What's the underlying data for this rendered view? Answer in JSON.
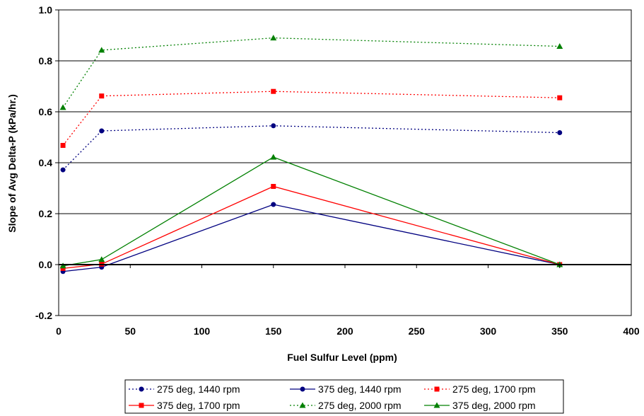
{
  "chart_data": {
    "type": "line",
    "title": "",
    "xlabel": "Fuel Sulfur Level (ppm)",
    "ylabel": "Slope of Avg Delta-P (kPa/hr.)",
    "xlim": [
      0,
      400
    ],
    "ylim": [
      -0.2,
      1.0
    ],
    "xticks": [
      0,
      50,
      100,
      150,
      200,
      250,
      300,
      350,
      400
    ],
    "yticks": [
      -0.2,
      0.0,
      0.2,
      0.4,
      0.6,
      0.8,
      1.0
    ],
    "xtick_labels": [
      "0",
      "50",
      "100",
      "150",
      "200",
      "250",
      "300",
      "350",
      "400"
    ],
    "ytick_labels": [
      "-0.2",
      "0.0",
      "0.2",
      "0.4",
      "0.6",
      "0.8",
      "1.0"
    ],
    "grid": "horizontal",
    "legend_position": "bottom",
    "x": [
      3,
      30,
      150,
      350
    ],
    "series": [
      {
        "name": "275 deg, 1440 rpm",
        "values": [
          0.372,
          0.525,
          0.545,
          0.518
        ],
        "color": "#000080",
        "dash": "dotted",
        "marker": "circle"
      },
      {
        "name": "375 deg, 1440 rpm",
        "values": [
          -0.027,
          -0.01,
          0.236,
          0.0
        ],
        "color": "#000080",
        "dash": "solid",
        "marker": "circle"
      },
      {
        "name": "275 deg, 1700 rpm",
        "values": [
          0.468,
          0.662,
          0.68,
          0.655
        ],
        "color": "#ff0000",
        "dash": "dotted",
        "marker": "square"
      },
      {
        "name": "375 deg, 1700 rpm",
        "values": [
          -0.015,
          0.002,
          0.307,
          0.0
        ],
        "color": "#ff0000",
        "dash": "solid",
        "marker": "square"
      },
      {
        "name": "275 deg, 2000 rpm",
        "values": [
          0.617,
          0.842,
          0.89,
          0.857
        ],
        "color": "#008000",
        "dash": "dotted",
        "marker": "triangle"
      },
      {
        "name": "375 deg, 2000 rpm",
        "values": [
          -0.005,
          0.02,
          0.422,
          0.0
        ],
        "color": "#008000",
        "dash": "solid",
        "marker": "triangle"
      }
    ]
  }
}
